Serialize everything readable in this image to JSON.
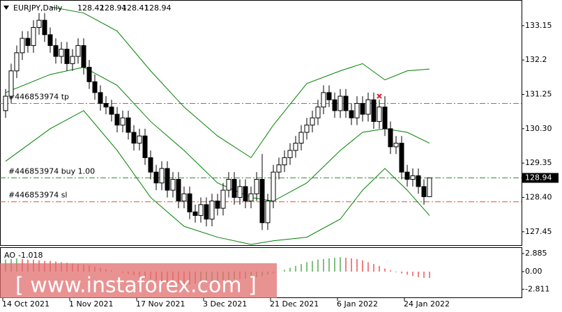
{
  "chart_data": {
    "type": "candlestick",
    "symbol": "EURJPY,Daily",
    "categories": [
      "14 Oct 2021",
      null,
      null,
      null,
      null,
      null,
      null,
      null,
      null,
      null,
      null,
      null,
      "1 Nov 2021",
      null,
      null,
      null,
      null,
      null,
      null,
      null,
      null,
      null,
      null,
      null,
      "17 Nov 2021",
      null,
      null,
      null,
      null,
      null,
      null,
      null,
      null,
      null,
      null,
      null,
      "3 Dec 2021",
      null,
      null,
      null,
      null,
      null,
      null,
      null,
      null,
      null,
      null,
      null,
      "21 Dec 2021",
      null,
      null,
      null,
      null,
      null,
      null,
      null,
      null,
      null,
      null,
      null,
      "6 Jan 2022",
      null,
      null,
      null,
      null,
      null,
      null,
      null,
      null,
      null,
      null,
      null,
      "24 Jan 2022",
      null,
      null,
      null,
      null
    ],
    "open": [
      130.8,
      131.2,
      131.9,
      132.4,
      132.8,
      132.6,
      133.1,
      133.3,
      132.9,
      132.6,
      132.3,
      132.5,
      132.1,
      132.3,
      132.6,
      132.0,
      131.6,
      131.3,
      131.0,
      130.9,
      130.7,
      130.4,
      130.6,
      130.2,
      129.9,
      130.1,
      129.5,
      129.1,
      128.8,
      129.2,
      128.6,
      128.9,
      128.3,
      128.5,
      128.0,
      127.9,
      128.2,
      127.8,
      128.3,
      128.1,
      128.6,
      128.9,
      128.4,
      128.7,
      128.3,
      128.5,
      128.9,
      127.7,
      128.3,
      129.1,
      129.3,
      129.5,
      129.7,
      129.9,
      130.2,
      130.4,
      130.6,
      130.9,
      131.3,
      131.1,
      130.8,
      131.2,
      130.8,
      130.6,
      131.0,
      130.7,
      131.1,
      130.5,
      130.9,
      130.3,
      129.8,
      129.9,
      129.1,
      128.9,
      129.0,
      128.7,
      128.42
    ],
    "high": [
      131.4,
      132.1,
      132.6,
      133.0,
      133.0,
      133.3,
      133.5,
      133.5,
      133.1,
      132.8,
      132.7,
      132.7,
      132.5,
      132.8,
      132.8,
      132.2,
      131.8,
      131.5,
      131.2,
      131.1,
      130.9,
      130.8,
      130.8,
      130.4,
      130.3,
      130.3,
      129.7,
      129.3,
      129.4,
      129.4,
      129.1,
      129.1,
      128.7,
      128.7,
      128.2,
      128.4,
      128.4,
      128.5,
      128.5,
      128.8,
      129.1,
      129.1,
      128.9,
      128.9,
      128.7,
      129.1,
      129.6,
      128.5,
      129.3,
      129.5,
      129.7,
      129.9,
      130.1,
      130.4,
      130.6,
      130.8,
      131.1,
      131.5,
      131.5,
      131.3,
      131.4,
      131.4,
      131.0,
      131.2,
      131.2,
      131.3,
      131.3,
      131.1,
      131.2,
      130.5,
      130.1,
      130.1,
      129.3,
      129.2,
      129.2,
      128.9,
      128.94
    ],
    "low": [
      130.6,
      131.0,
      131.7,
      132.2,
      132.4,
      132.4,
      132.9,
      132.7,
      132.4,
      132.1,
      132.1,
      131.9,
      131.9,
      132.1,
      131.8,
      131.4,
      131.1,
      130.8,
      130.7,
      130.5,
      130.2,
      130.2,
      130.0,
      129.7,
      129.7,
      129.3,
      128.9,
      128.6,
      128.6,
      128.4,
      128.4,
      128.1,
      128.1,
      127.8,
      127.7,
      127.7,
      127.6,
      127.6,
      127.9,
      127.9,
      128.4,
      128.2,
      128.2,
      128.1,
      128.1,
      128.3,
      127.5,
      127.5,
      128.1,
      128.9,
      129.1,
      129.3,
      129.5,
      129.7,
      130.0,
      130.2,
      130.4,
      130.7,
      130.9,
      130.6,
      130.6,
      130.6,
      130.4,
      130.4,
      130.5,
      130.5,
      130.3,
      130.3,
      130.1,
      129.6,
      129.6,
      128.9,
      128.7,
      128.7,
      128.5,
      128.2,
      128.41
    ],
    "close": [
      131.2,
      131.9,
      132.4,
      132.8,
      132.6,
      133.1,
      133.3,
      132.9,
      132.6,
      132.3,
      132.5,
      132.1,
      132.3,
      132.6,
      132.0,
      131.6,
      131.3,
      131.0,
      130.9,
      130.7,
      130.4,
      130.6,
      130.2,
      129.9,
      130.1,
      129.5,
      129.1,
      128.8,
      129.2,
      128.6,
      128.9,
      128.3,
      128.5,
      128.0,
      127.9,
      128.2,
      127.8,
      128.3,
      128.1,
      128.6,
      128.9,
      128.4,
      128.7,
      128.3,
      128.5,
      128.9,
      127.7,
      128.3,
      129.1,
      129.3,
      129.5,
      129.7,
      129.9,
      130.2,
      130.4,
      130.6,
      130.9,
      131.3,
      131.1,
      130.8,
      131.2,
      130.8,
      130.6,
      131.0,
      130.7,
      131.1,
      130.5,
      130.9,
      130.3,
      129.8,
      129.9,
      129.1,
      128.9,
      129.0,
      128.7,
      128.42,
      128.94
    ],
    "bull_color": "#ffffff",
    "bear_color": "#000000",
    "wick_color": "#000000",
    "bands": {
      "color": "#008000",
      "series": [
        {
          "x": [
            8,
            14,
            20,
            26,
            32,
            38,
            44,
            48,
            54,
            60,
            64,
            68,
            72,
            76
          ],
          "values": [
            133.67,
            133.5,
            133.0,
            131.9,
            130.9,
            130.1,
            129.5,
            130.4,
            131.55,
            131.9,
            132.1,
            131.65,
            131.9,
            131.95
          ]
        },
        {
          "x": [
            0,
            8,
            14,
            20,
            26,
            32,
            38,
            44,
            48,
            54,
            60,
            64,
            68,
            72,
            76
          ],
          "values": [
            131.3,
            131.8,
            132.0,
            131.5,
            130.5,
            129.7,
            128.8,
            128.4,
            128.3,
            128.8,
            129.7,
            130.2,
            130.3,
            130.2,
            129.9
          ]
        },
        {
          "x": [
            0,
            8,
            14,
            20,
            26,
            32,
            38,
            44,
            48,
            54,
            60,
            64,
            68,
            72,
            76
          ],
          "values": [
            129.4,
            130.3,
            130.8,
            129.7,
            128.4,
            127.6,
            127.3,
            127.1,
            127.2,
            127.3,
            127.8,
            128.6,
            129.2,
            128.6,
            127.9
          ]
        }
      ]
    },
    "order_lines": [
      {
        "label": "#446853974 tp",
        "value": 131.0,
        "color": "#e0522b"
      },
      {
        "label": "#446853974 buy 1.00",
        "value": 128.94,
        "color": "#2e8b2e"
      },
      {
        "label": "#446853974 sl",
        "value": 128.28,
        "color": "#e0522b"
      }
    ],
    "marker": {
      "x": 67,
      "value": 131.2,
      "color": "#e02020"
    },
    "ylim": [
      127.08,
      133.86
    ],
    "yticks": [
      133.15,
      132.2,
      {
        "value": 131.25,
        "label": "131.25"
      },
      {
        "value": 130.3,
        "label": "130.30"
      },
      129.35,
      {
        "value": 128.4,
        "label": "128.40"
      },
      127.45
    ],
    "grid": false,
    "ao": {
      "label": "AO",
      "up_color": "#008000",
      "down_color": "#e00000",
      "values": [
        1.9,
        2.0,
        2.1,
        2.0,
        1.9,
        1.9,
        1.8,
        1.7,
        1.7,
        1.6,
        1.5,
        1.4,
        1.3,
        1.2,
        1.1,
        1.0,
        0.8,
        0.6,
        0.4,
        0.2,
        0.0,
        -0.2,
        -0.4,
        -0.6,
        -0.8,
        -1.0,
        -1.2,
        -1.4,
        -1.6,
        -1.7,
        -1.8,
        -1.9,
        -2.0,
        -2.0,
        -1.9,
        -1.8,
        -1.7,
        -1.6,
        -1.5,
        -1.4,
        -1.3,
        -1.2,
        -1.2,
        -1.1,
        -1.0,
        -0.9,
        -0.7,
        -0.5,
        -0.3,
        0.0,
        0.3,
        0.6,
        0.9,
        1.2,
        1.5,
        1.7,
        1.9,
        2.0,
        2.1,
        2.2,
        2.3,
        2.2,
        2.1,
        2.0,
        1.8,
        1.5,
        1.2,
        0.9,
        0.5,
        0.2,
        -0.1,
        -0.3,
        -0.5,
        -0.7,
        -0.9,
        -1.0,
        -1.018
      ],
      "value_labels": {
        "76": "-1.018"
      },
      "ylim": [
        -4.22,
        3.88
      ],
      "yticks": [
        2.885,
        {
          "value": 0,
          "label": "0.00"
        },
        -2.811
      ]
    },
    "watermark": "[ www.instaforex.com ]"
  }
}
